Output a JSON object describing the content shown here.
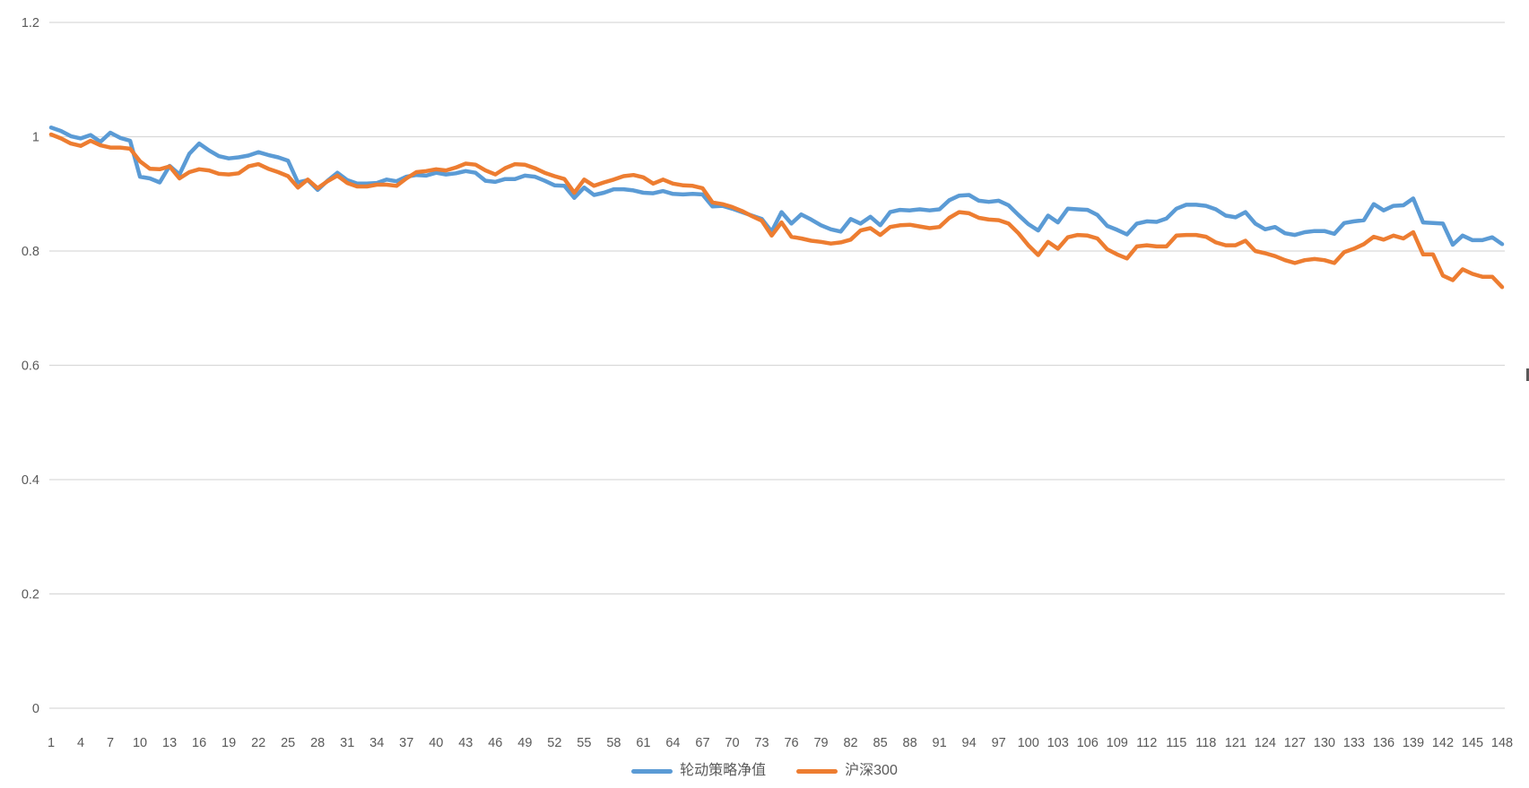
{
  "page": {
    "background": "#ffffff",
    "text_color": "#595959",
    "gridline_color": "#d9d9d9"
  },
  "legend": {
    "items": [
      {
        "label": "轮动策略净值",
        "color": "#5b9bd5"
      },
      {
        "label": "沪深300",
        "color": "#ed7d31"
      }
    ]
  },
  "edge_fragments": {
    "left_text": ")"
  },
  "chart_data": {
    "type": "line",
    "title": "",
    "xlabel": "",
    "ylabel": "",
    "grid": true,
    "legend_position": "bottom-center",
    "ylim": [
      0,
      1.2
    ],
    "y_ticks": [
      0,
      0.2,
      0.4,
      0.6,
      0.8,
      1,
      1.2
    ],
    "y_tick_labels": [
      "0",
      "0.2",
      "0.4",
      "0.6",
      "0.8",
      "1",
      "1.2"
    ],
    "x_range": [
      1,
      148
    ],
    "x_tick_values": [
      1,
      4,
      7,
      10,
      13,
      16,
      19,
      22,
      25,
      28,
      31,
      34,
      37,
      40,
      43,
      46,
      49,
      52,
      55,
      58,
      61,
      64,
      67,
      70,
      73,
      76,
      79,
      82,
      85,
      88,
      91,
      94,
      97,
      100,
      103,
      106,
      109,
      112,
      115,
      118,
      121,
      124,
      127,
      130,
      133,
      136,
      139,
      142,
      145,
      148
    ],
    "series": [
      {
        "name": "轮动策略净值",
        "color": "#5b9bd5",
        "values": [
          1.016,
          1.01,
          1.001,
          0.997,
          1.003,
          0.991,
          1.007,
          0.998,
          0.993,
          0.93,
          0.927,
          0.92,
          0.949,
          0.934,
          0.97,
          0.988,
          0.976,
          0.966,
          0.962,
          0.964,
          0.967,
          0.973,
          0.968,
          0.964,
          0.958,
          0.92,
          0.924,
          0.907,
          0.923,
          0.937,
          0.924,
          0.918,
          0.918,
          0.919,
          0.925,
          0.922,
          0.93,
          0.933,
          0.932,
          0.937,
          0.934,
          0.936,
          0.94,
          0.937,
          0.923,
          0.921,
          0.926,
          0.926,
          0.932,
          0.93,
          0.923,
          0.915,
          0.914,
          0.893,
          0.911,
          0.898,
          0.902,
          0.908,
          0.908,
          0.906,
          0.902,
          0.901,
          0.905,
          0.9,
          0.899,
          0.9,
          0.899,
          0.878,
          0.879,
          0.874,
          0.868,
          0.862,
          0.856,
          0.834,
          0.868,
          0.848,
          0.864,
          0.855,
          0.845,
          0.838,
          0.834,
          0.856,
          0.848,
          0.86,
          0.845,
          0.868,
          0.872,
          0.871,
          0.873,
          0.871,
          0.873,
          0.889,
          0.897,
          0.898,
          0.888,
          0.886,
          0.888,
          0.88,
          0.863,
          0.847,
          0.836,
          0.862,
          0.85,
          0.874,
          0.873,
          0.872,
          0.863,
          0.844,
          0.837,
          0.829,
          0.848,
          0.852,
          0.851,
          0.857,
          0.874,
          0.881,
          0.881,
          0.879,
          0.873,
          0.862,
          0.859,
          0.868,
          0.848,
          0.838,
          0.842,
          0.831,
          0.828,
          0.833,
          0.835,
          0.835,
          0.83,
          0.849,
          0.852,
          0.854,
          0.882,
          0.871,
          0.879,
          0.88,
          0.892,
          0.85,
          0.849,
          0.848,
          0.811,
          0.827,
          0.819,
          0.819,
          0.824,
          0.812
        ]
      },
      {
        "name": "沪深300",
        "color": "#ed7d31",
        "values": [
          1.004,
          0.997,
          0.988,
          0.984,
          0.993,
          0.985,
          0.981,
          0.981,
          0.979,
          0.957,
          0.944,
          0.943,
          0.948,
          0.927,
          0.938,
          0.943,
          0.941,
          0.935,
          0.934,
          0.936,
          0.948,
          0.952,
          0.944,
          0.938,
          0.931,
          0.911,
          0.925,
          0.91,
          0.922,
          0.932,
          0.919,
          0.913,
          0.913,
          0.916,
          0.916,
          0.914,
          0.927,
          0.938,
          0.94,
          0.943,
          0.941,
          0.946,
          0.953,
          0.951,
          0.941,
          0.934,
          0.945,
          0.952,
          0.951,
          0.945,
          0.937,
          0.931,
          0.926,
          0.902,
          0.925,
          0.914,
          0.92,
          0.925,
          0.931,
          0.933,
          0.929,
          0.918,
          0.925,
          0.918,
          0.915,
          0.914,
          0.91,
          0.885,
          0.882,
          0.877,
          0.87,
          0.861,
          0.853,
          0.827,
          0.85,
          0.825,
          0.822,
          0.818,
          0.816,
          0.813,
          0.815,
          0.82,
          0.836,
          0.84,
          0.828,
          0.842,
          0.845,
          0.846,
          0.843,
          0.84,
          0.842,
          0.858,
          0.868,
          0.866,
          0.858,
          0.855,
          0.854,
          0.848,
          0.831,
          0.81,
          0.793,
          0.816,
          0.804,
          0.824,
          0.828,
          0.827,
          0.822,
          0.803,
          0.794,
          0.787,
          0.808,
          0.81,
          0.808,
          0.808,
          0.827,
          0.828,
          0.828,
          0.825,
          0.815,
          0.81,
          0.81,
          0.818,
          0.8,
          0.796,
          0.791,
          0.784,
          0.779,
          0.784,
          0.786,
          0.784,
          0.779,
          0.798,
          0.804,
          0.812,
          0.825,
          0.82,
          0.827,
          0.822,
          0.833,
          0.794,
          0.794,
          0.757,
          0.749,
          0.768,
          0.76,
          0.755,
          0.755,
          0.737
        ]
      }
    ]
  }
}
